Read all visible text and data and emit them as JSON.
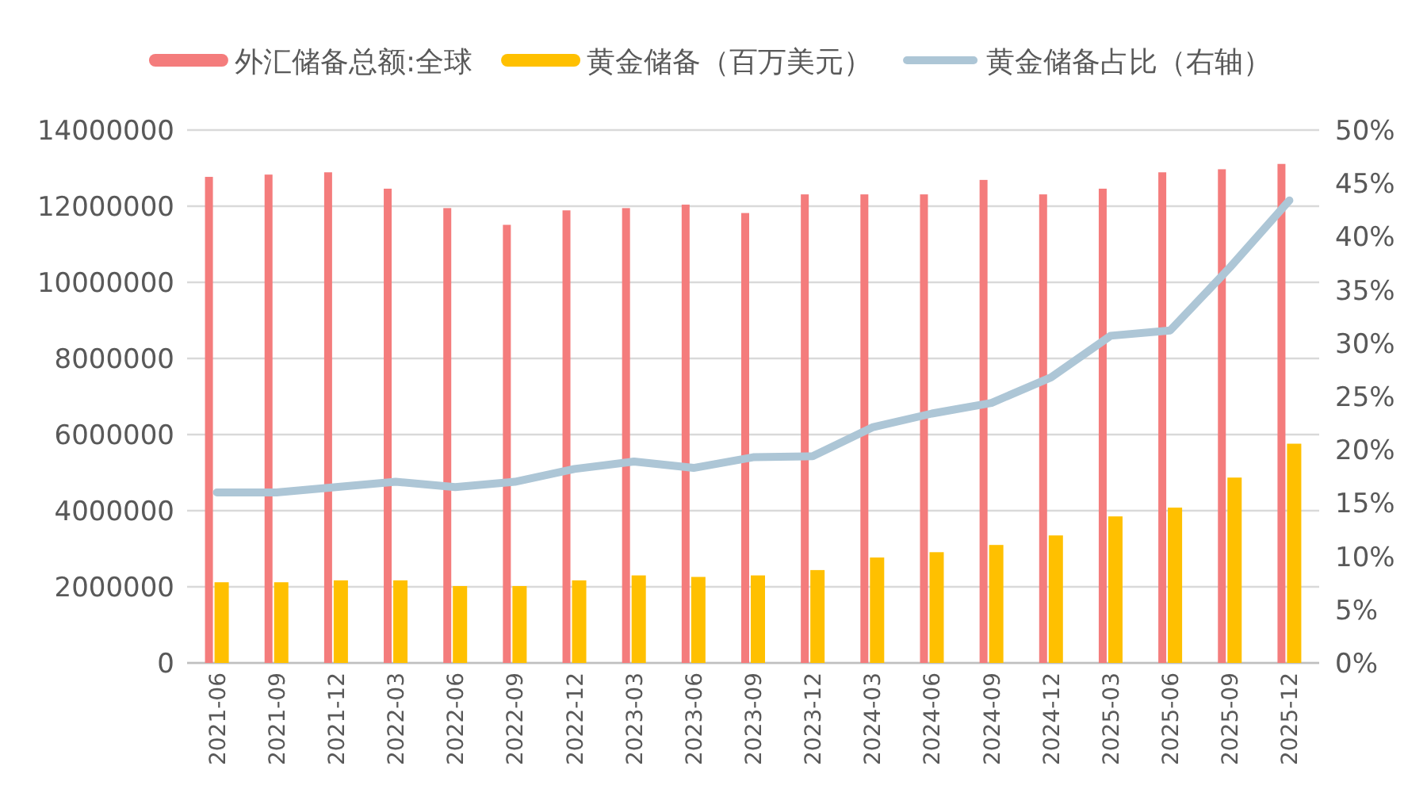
{
  "chart_data": {
    "type": "bar",
    "categories": [
      "2021-06",
      "2021-09",
      "2021-12",
      "2022-03",
      "2022-06",
      "2022-09",
      "2022-12",
      "2023-03",
      "2023-06",
      "2023-09",
      "2023-12",
      "2024-03",
      "2024-06",
      "2024-09",
      "2024-12",
      "2025-03",
      "2025-06",
      "2025-09",
      "2025-12"
    ],
    "series": [
      {
        "name": "外汇储备总额:全球",
        "color": "#f47c7c",
        "values": [
          12770000,
          12830000,
          12890000,
          12460000,
          11950000,
          11510000,
          11890000,
          11950000,
          12040000,
          11820000,
          12310000,
          12310000,
          12310000,
          12690000,
          12310000,
          12460000,
          12890000,
          12970000,
          13110000
        ]
      },
      {
        "name": "黄金储备（百万美元）",
        "color": "#ffc000",
        "values": [
          2120000,
          2120000,
          2170000,
          2170000,
          2020000,
          2020000,
          2170000,
          2300000,
          2260000,
          2300000,
          2440000,
          2770000,
          2910000,
          3100000,
          3350000,
          3850000,
          4080000,
          4870000,
          5760000
        ]
      },
      {
        "name": "黄金储备占比（右轴）",
        "type": "line",
        "axis": "y2",
        "color": "#adc6d6",
        "values": [
          16.0,
          16.0,
          16.5,
          17.0,
          16.5,
          17.0,
          18.2,
          18.9,
          18.3,
          19.3,
          19.4,
          22.1,
          23.4,
          24.4,
          26.8,
          30.7,
          31.2,
          37.1,
          43.4
        ]
      }
    ],
    "ylim": [
      0,
      14000000
    ],
    "yticks": [
      0,
      2000000,
      4000000,
      6000000,
      8000000,
      10000000,
      12000000,
      14000000
    ],
    "y2lim": [
      0,
      50
    ],
    "y2ticks": [
      {
        "value": 0,
        "label": "0%"
      },
      {
        "value": 5,
        "label": "5%"
      },
      {
        "value": 10,
        "label": "10%"
      },
      {
        "value": 15,
        "label": "15%"
      },
      {
        "value": 20,
        "label": "20%"
      },
      {
        "value": 25,
        "label": "25%"
      },
      {
        "value": 30,
        "label": "30%"
      },
      {
        "value": 35,
        "label": "35%"
      },
      {
        "value": 40,
        "label": "40%"
      },
      {
        "value": 45,
        "label": "45%"
      },
      {
        "value": 50,
        "label": "50%"
      }
    ],
    "grid": "y",
    "legend": "top"
  }
}
